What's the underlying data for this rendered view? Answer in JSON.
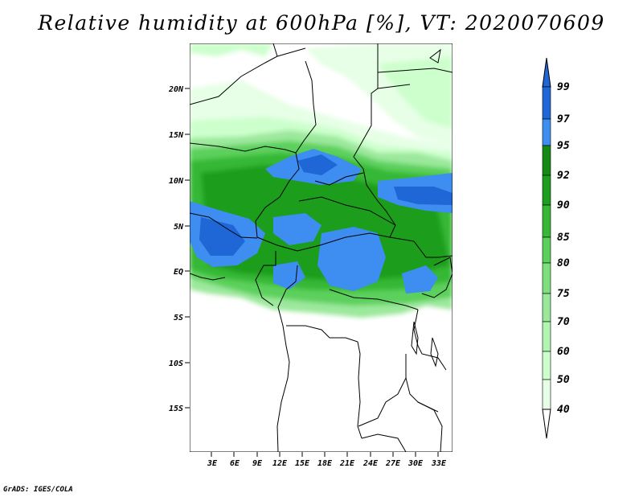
{
  "title": "Relative humidity at 600hPa [%], VT: 2020070609",
  "credit": "GrADS: IGES/COLA",
  "map": {
    "lat_labels": [
      "20N",
      "15N",
      "10N",
      "5N",
      "EQ",
      "5S",
      "10S",
      "15S"
    ],
    "lon_labels": [
      "3E",
      "6E",
      "9E",
      "12E",
      "15E",
      "18E",
      "21E",
      "24E",
      "27E",
      "30E",
      "33E"
    ]
  },
  "colorbar": {
    "levels": [
      "40",
      "50",
      "60",
      "70",
      "75",
      "80",
      "85",
      "90",
      "92",
      "95",
      "97",
      "99"
    ],
    "colors": [
      "#ffffff",
      "#e6ffe6",
      "#ccffcc",
      "#b2f5b2",
      "#9be89b",
      "#7de07d",
      "#5bd05b",
      "#36b836",
      "#1e9e1e",
      "#148a14",
      "#3d8ef0",
      "#1f66d6"
    ]
  }
}
